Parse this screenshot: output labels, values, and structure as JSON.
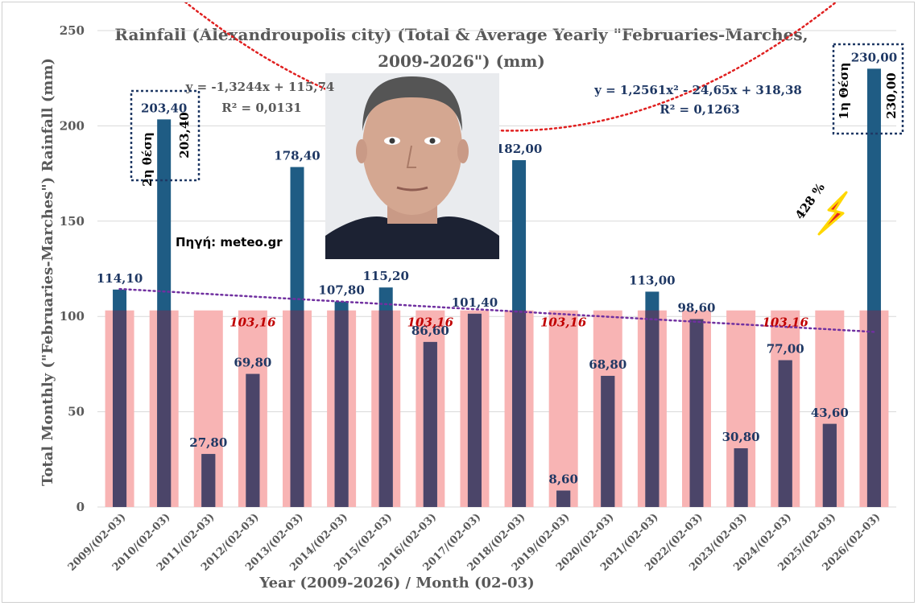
{
  "chart_data": {
    "type": "bar",
    "title_line1": "Rainfall (Alexandroupolis city) (Total & Average Yearly \"Februaries-Marches,",
    "title_line2": "2009-2026\") (mm)",
    "xlabel": "Year (2009-2026) / Month (02-03)",
    "ylabel": "Total Monthly (\"Februaries-Marches\") Rainfall (mm)",
    "ylim": [
      0,
      250
    ],
    "yticks": [
      "0",
      "50",
      "100",
      "150",
      "200",
      "250"
    ],
    "grid": true,
    "categories": [
      "2009/(02-03)",
      "2010/(02-03)",
      "2011/(02-03)",
      "2012/(02-03)",
      "2013/(02-03)",
      "2014/(02-03)",
      "2015/(02-03)",
      "2016/(02-03)",
      "2017/(02-03)",
      "2018/(02-03)",
      "2019/(02-03)",
      "2020/(02-03)",
      "2021/(02-03)",
      "2022/(02-03)",
      "2023/(02-03)",
      "2024/(02-03)",
      "2025/(02-03)",
      "2026/(02-03)"
    ],
    "series": [
      {
        "values": [
          114.1,
          203.4,
          27.8,
          69.8,
          178.4,
          107.8,
          115.2,
          86.6,
          101.4,
          182.0,
          8.6,
          68.8,
          113.0,
          98.6,
          30.8,
          77.0,
          43.6,
          230.0
        ],
        "labels": [
          "114,10",
          "203,40",
          "27,80",
          "69,80",
          "178,40",
          "107,80",
          "115,20",
          "86,60",
          "101,40",
          "182,00",
          "8,60",
          "68,80",
          "113,00",
          "98,60",
          "30,80",
          "77,00",
          "43,60",
          "230,00"
        ],
        "color": "#1f5c84"
      },
      {
        "values": [
          103.16,
          103.16,
          103.16,
          103.16,
          103.16,
          103.16,
          103.16,
          103.16,
          103.16,
          103.16,
          103.16,
          103.16,
          103.16,
          103.16,
          103.16,
          103.16,
          103.16,
          103.16
        ],
        "color": "#f8b4b4",
        "labels_shown": [
          {
            "index": 3,
            "text": "103,16"
          },
          {
            "index": 7,
            "text": "103,16"
          },
          {
            "index": 10,
            "text": "103,16"
          },
          {
            "index": 15,
            "text": "103,16"
          }
        ]
      }
    ],
    "trendlines": [
      {
        "kind": "linear",
        "equation": "y = -1,3244x + 115,74",
        "r2": "R² = 0,0131",
        "a": -1.3244,
        "b": 115.74,
        "color": "#7030a0"
      },
      {
        "kind": "polynomial",
        "equation": "y = 1,2561x² - 24,65x + 318,38",
        "r2": "R² = 0,1263",
        "a": 1.2561,
        "b": -24.65,
        "c": 318.38,
        "color": "#e02020",
        "eq_color": "#1f3864"
      }
    ],
    "annotations": {
      "source": "Πηγή: meteo.gr",
      "box_2nd_rank": "2η θέση",
      "box_2nd_value": "203,40",
      "box_1st_rank": "1η Θέση",
      "box_1st_value": "230,00",
      "percent": "428 %"
    },
    "colors": {
      "bar_dark": "#1f5c84",
      "overlap": "#4b4569",
      "average": "#f8b4b4",
      "label": "#1f3864",
      "avg_label": "#c00000",
      "text_grey": "#595959"
    }
  },
  "photo": {
    "icon": "portrait-photo"
  },
  "lightning": {
    "icon": "lightning-bolt-icon"
  }
}
